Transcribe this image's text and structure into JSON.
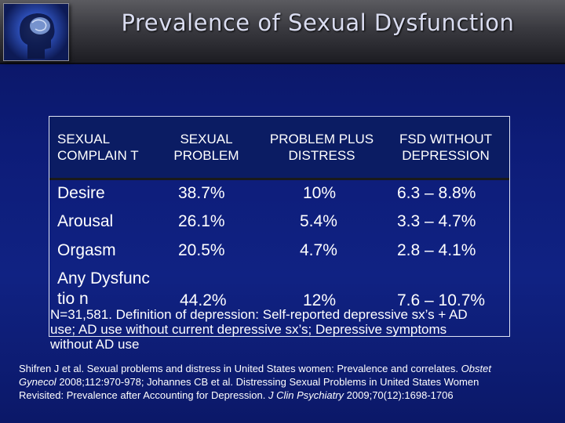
{
  "slide": {
    "title": "Prevalence of Sexual Dysfunction"
  },
  "table": {
    "headers": [
      "SEXUAL COMPLAIN T",
      "SEXUAL PROBLEM",
      "PROBLEM PLUS DISTRESS",
      "FSD WITHOUT DEPRESSION"
    ],
    "rows": [
      [
        "Desire",
        "38.7%",
        "10%",
        "6.3 – 8.8%"
      ],
      [
        "Arousal",
        "26.1%",
        "5.4%",
        "3.3 – 4.7%"
      ],
      [
        "Orgasm",
        "20.5%",
        "4.7%",
        "2.8 – 4.1%"
      ],
      [
        "Any Dysfunctio n",
        "44.2%",
        "12%",
        "7.6 – 10.7%"
      ]
    ]
  },
  "footnote": "N=31,581. Definition of depression: Self-reported depressive sx’s + AD use; AD use without current depressive sx’s; Depressive symptoms without AD use",
  "citation": {
    "part1": "Shifren J et al. Sexual problems and distress in United States women: Prevalence and correlates.",
    "journal1": "Obstet Gynecol",
    "part2": "2008;112:970-978; Johannes CB et al. Distressing Sexual Problems in United States Women Revisited: Prevalence after Accounting for Depression.",
    "journal2": "J Clin Psychiatry",
    "part3": "2009;70(12):1698-1706"
  }
}
